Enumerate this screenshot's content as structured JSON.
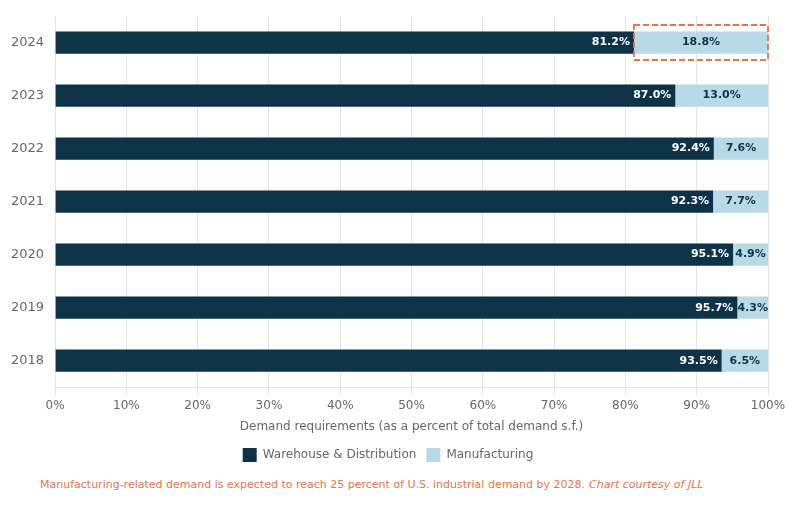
{
  "chart_data": {
    "type": "bar",
    "orientation": "horizontal",
    "stacked": true,
    "categories": [
      "2018",
      "2019",
      "2020",
      "2021",
      "2022",
      "2023",
      "2024"
    ],
    "series": [
      {
        "name": "Warehouse & Distribution",
        "color": "#0d3349",
        "values": [
          93.5,
          95.7,
          95.1,
          92.3,
          92.4,
          87.0,
          81.2
        ],
        "value_labels": [
          "93.5%",
          "95.7%",
          "95.1%",
          "92.3%",
          "92.4%",
          "87.0%",
          "81.2%"
        ]
      },
      {
        "name": "Manufacturing",
        "color": "#b8d9e8",
        "values": [
          6.5,
          4.3,
          4.9,
          7.7,
          7.6,
          13.0,
          18.8
        ],
        "value_labels": [
          "6.5%",
          "4.3%",
          "4.9%",
          "7.7%",
          "7.6%",
          "13.0%",
          "18.8%"
        ]
      }
    ],
    "data_labels": true,
    "xlabel": "Demand requirements (as a percent of total demand s.f.)",
    "xlim": [
      0,
      100
    ],
    "xticks": [
      {
        "value": 0,
        "label": "0%"
      },
      {
        "value": 10,
        "label": "10%"
      },
      {
        "value": 20,
        "label": "20%"
      },
      {
        "value": 30,
        "label": "30%"
      },
      {
        "value": 40,
        "label": "40%"
      },
      {
        "value": 50,
        "label": "50%"
      },
      {
        "value": 60,
        "label": "60%"
      },
      {
        "value": 70,
        "label": "70%"
      },
      {
        "value": 80,
        "label": "80%"
      },
      {
        "value": 90,
        "label": "90%"
      },
      {
        "value": 100,
        "label": "100%"
      }
    ],
    "grid": true,
    "legend": "bottom",
    "annotations": [
      {
        "type": "box",
        "category": "2024",
        "series": "Manufacturing",
        "color": "#e8734a",
        "line_style": "dashed"
      },
      {
        "text": "Manufacturing-related demand is expected to reach 25 percent of U.S. industrial demand by 2028.",
        "color": "#e8734a"
      },
      {
        "text": "Chart courtesy of JLL",
        "color": "#e8734a"
      }
    ]
  }
}
